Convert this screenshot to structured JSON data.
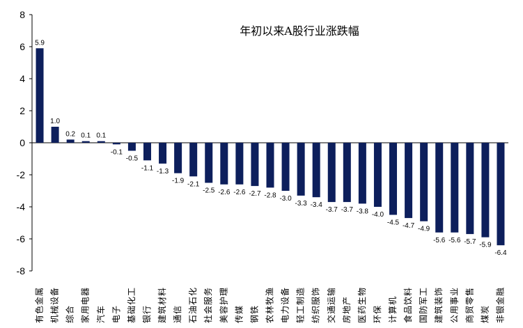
{
  "chart_data": {
    "type": "bar",
    "title": "年初以来A股行业涨跌幅",
    "xlabel": "",
    "ylabel": "",
    "ylim": [
      -8,
      8
    ],
    "yticks": [
      8,
      6,
      4,
      2,
      0,
      -2,
      -4,
      -6,
      -8
    ],
    "grid": false,
    "legend": "none",
    "bar_color": "#0d1f5c",
    "categories": [
      "有色金属",
      "机械设备",
      "综合",
      "家用电器",
      "汽车",
      "电子",
      "基础化工",
      "银行",
      "建筑材料",
      "通信",
      "石油石化",
      "社会服务",
      "美容护理",
      "传媒",
      "钢铁",
      "农林牧渔",
      "电力设备",
      "轻工制造",
      "纺织服饰",
      "交通运输",
      "房地产",
      "医药生物",
      "环保",
      "计算机",
      "食品饮料",
      "国防军工",
      "建筑装饰",
      "公用事业",
      "商贸零售",
      "煤炭",
      "非银金融"
    ],
    "values": [
      5.9,
      1.0,
      0.2,
      0.1,
      0.1,
      -0.1,
      -0.5,
      -1.1,
      -1.3,
      -1.9,
      -2.1,
      -2.5,
      -2.6,
      -2.6,
      -2.7,
      -2.8,
      -3.0,
      -3.3,
      -3.4,
      -3.7,
      -3.7,
      -3.8,
      -4.0,
      -4.5,
      -4.7,
      -4.9,
      -5.6,
      -5.6,
      -5.7,
      -5.9,
      -6.4
    ],
    "data_labels": [
      "5.9",
      "1.0",
      "0.2",
      "0.1",
      "0.1",
      "-0.1",
      "-0.5",
      "-1.1",
      "-1.3",
      "-1.9",
      "-2.1",
      "-2.5",
      "-2.6",
      "-2.6",
      "-2.7",
      "-2.8",
      "-3.0",
      "-3.3",
      "-3.4",
      "-3.7",
      "-3.7",
      "-3.8",
      "-4.0",
      "-4.5",
      "-4.7",
      "-4.9",
      "-5.6",
      "-5.6",
      "-5.7",
      "-5.9",
      "-6.4"
    ]
  }
}
